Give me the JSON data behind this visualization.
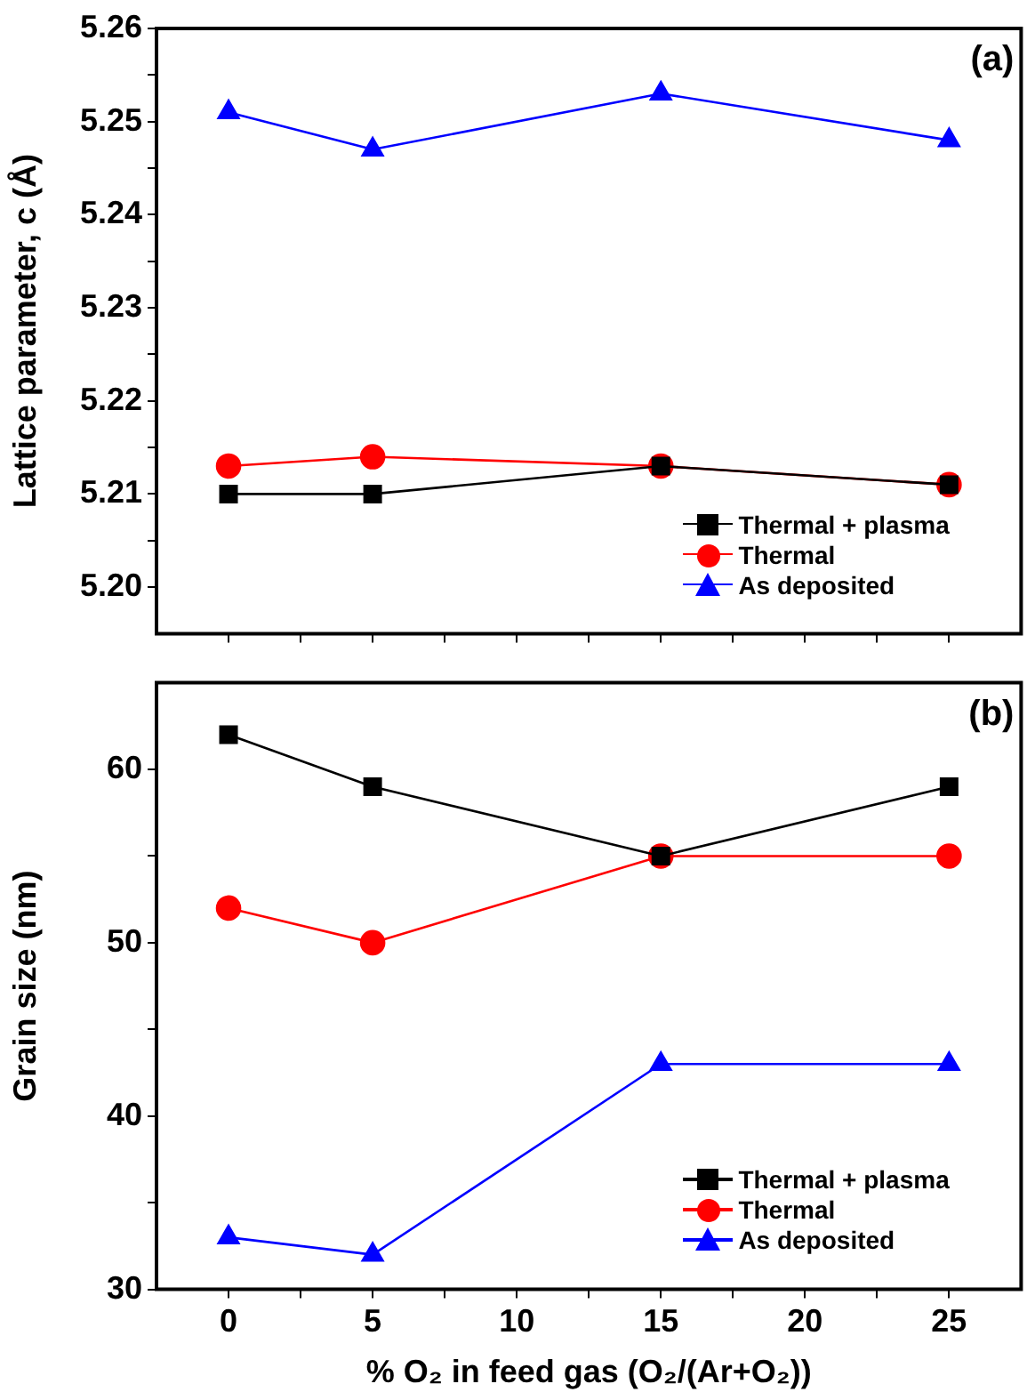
{
  "chart_data": [
    {
      "type": "line",
      "ylabel": "Lattice parameter, c (Å)",
      "x": [
        0,
        5,
        15,
        25
      ],
      "xlim": [
        -2.5,
        27.5
      ],
      "xticks": [
        0,
        {
          "value": 2.5,
          "label": null
        },
        5,
        {
          "value": 7.5,
          "label": null
        },
        10,
        {
          "value": 12.5,
          "label": null
        },
        15,
        {
          "value": 17.5,
          "label": null
        },
        20,
        {
          "value": 22.5,
          "label": null
        },
        25
      ],
      "ylim": [
        5.195,
        5.26
      ],
      "yticks": [
        {
          "value": 5.2,
          "label": "5.20"
        },
        {
          "value": 5.205,
          "label": null
        },
        5.21,
        {
          "value": 5.215,
          "label": null
        },
        5.22,
        {
          "value": 5.225,
          "label": null
        },
        5.23,
        {
          "value": 5.235,
          "label": null
        },
        5.24,
        {
          "value": 5.245,
          "label": null
        },
        5.25,
        {
          "value": 5.255,
          "label": null
        },
        5.26
      ],
      "tick_labels": "y",
      "legend": "bottom right",
      "annotations": [
        "(a)"
      ],
      "series": [
        {
          "name": "Thermal + plasma",
          "color": "#000000",
          "marker": "square",
          "values": [
            5.21,
            5.21,
            5.213,
            5.211
          ]
        },
        {
          "name": "Thermal",
          "color": "#ff0000",
          "marker": "circle",
          "values": [
            5.213,
            5.214,
            5.213,
            5.211
          ]
        },
        {
          "name": "As deposited",
          "color": "#0000ff",
          "marker": "triangle",
          "values": [
            5.251,
            5.247,
            5.253,
            5.248
          ]
        }
      ]
    },
    {
      "type": "line",
      "ylabel": "Grain size (nm)",
      "xlabel": "% O₂ in feed gas (O₂/(Ar+O₂))",
      "x": [
        0,
        5,
        15,
        25
      ],
      "xlim": [
        -2.5,
        27.5
      ],
      "xticks": [
        0,
        {
          "value": 2.5,
          "label": null
        },
        5,
        {
          "value": 7.5,
          "label": null
        },
        10,
        {
          "value": 12.5,
          "label": null
        },
        15,
        {
          "value": 17.5,
          "label": null
        },
        20,
        {
          "value": 22.5,
          "label": null
        },
        25
      ],
      "ylim": [
        30,
        65
      ],
      "yticks": [
        30,
        {
          "value": 35,
          "label": null
        },
        40,
        {
          "value": 45,
          "label": null
        },
        50,
        {
          "value": 55,
          "label": null
        },
        60
      ],
      "legend": "bottom right",
      "annotations": [
        "(b)"
      ],
      "series": [
        {
          "name": "Thermal + plasma",
          "color": "#000000",
          "marker": "square",
          "values": [
            62,
            59,
            55,
            59
          ]
        },
        {
          "name": "Thermal",
          "color": "#ff0000",
          "marker": "circle",
          "values": [
            52,
            50,
            55,
            55
          ]
        },
        {
          "name": "As deposited",
          "color": "#0000ff",
          "marker": "triangle",
          "values": [
            33,
            32,
            43,
            43
          ]
        }
      ]
    }
  ]
}
